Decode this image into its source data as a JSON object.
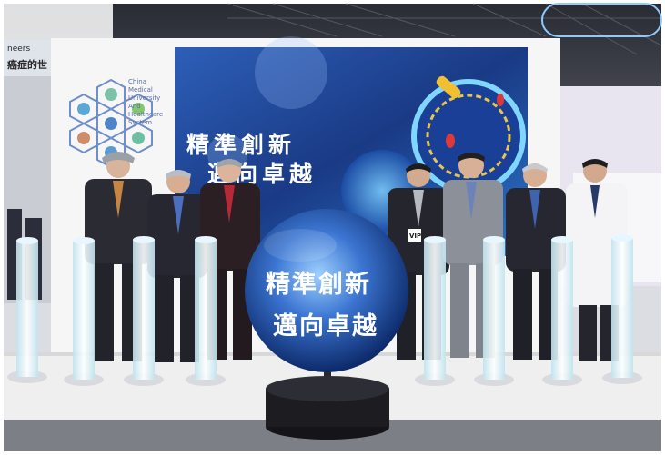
{
  "photo": {
    "top_banner_fragment": "neers",
    "top_banner_cn": "癌症的世",
    "logo_lines": [
      "China",
      "Medical",
      "University",
      "And",
      "Healthcare",
      "System"
    ],
    "screen_slogan_line1": "精準創新",
    "screen_slogan_line2": "邁向卓越",
    "sphere_slogan_line1": "精準創新",
    "sphere_slogan_line2": "邁向卓越",
    "badge_text": "VIP",
    "colors": {
      "screen_blue": "#1c3f8f",
      "sphere_blue": "#2a5fb8",
      "stage_white": "#f2f2f2",
      "pillar_glow": "#d8f3ff",
      "floor_gray": "#7d7f86"
    }
  }
}
